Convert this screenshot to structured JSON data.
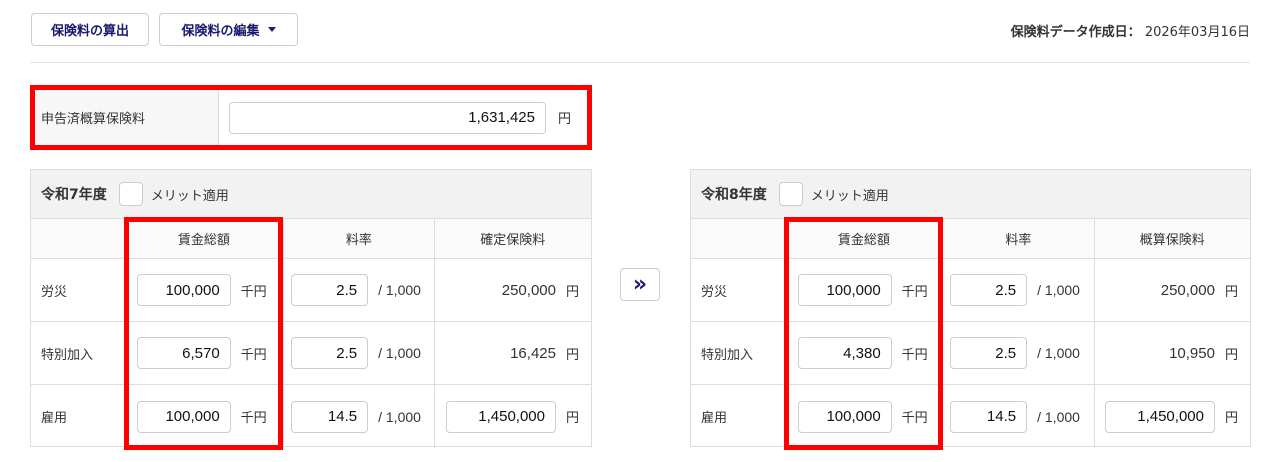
{
  "toolbar": {
    "calc_label": "保険料の算出",
    "edit_label": "保険料の編集"
  },
  "created": {
    "label": "保険料データ作成日：",
    "value": "2026年03月16日"
  },
  "declared": {
    "label": "申告済概算保険料",
    "value": "1,631,425",
    "unit": "円"
  },
  "transfer_icon": "double-chevron-right-icon",
  "tables": [
    {
      "year": "令和7年度",
      "merit_label": "メリット適用",
      "merit_checked": false,
      "columns": [
        "",
        "賃金総額",
        "料率",
        "確定保険料"
      ],
      "rows": [
        {
          "label": "労災",
          "wage": "100,000",
          "wage_unit": "千円",
          "rate": "2.5",
          "rate_unit": "/ 1,000",
          "premium": "250,000",
          "premium_unit": "円",
          "premium_editable": false
        },
        {
          "label": "特別加入",
          "wage": "6,570",
          "wage_unit": "千円",
          "rate": "2.5",
          "rate_unit": "/ 1,000",
          "premium": "16,425",
          "premium_unit": "円",
          "premium_editable": false
        },
        {
          "label": "雇用",
          "wage": "100,000",
          "wage_unit": "千円",
          "rate": "14.5",
          "rate_unit": "/ 1,000",
          "premium": "1,450,000",
          "premium_unit": "円",
          "premium_editable": true
        }
      ]
    },
    {
      "year": "令和8年度",
      "merit_label": "メリット適用",
      "merit_checked": false,
      "columns": [
        "",
        "賃金総額",
        "料率",
        "概算保険料"
      ],
      "rows": [
        {
          "label": "労災",
          "wage": "100,000",
          "wage_unit": "千円",
          "rate": "2.5",
          "rate_unit": "/ 1,000",
          "premium": "250,000",
          "premium_unit": "円",
          "premium_editable": false
        },
        {
          "label": "特別加入",
          "wage": "4,380",
          "wage_unit": "千円",
          "rate": "2.5",
          "rate_unit": "/ 1,000",
          "premium": "10,950",
          "premium_unit": "円",
          "premium_editable": false
        },
        {
          "label": "雇用",
          "wage": "100,000",
          "wage_unit": "千円",
          "rate": "14.5",
          "rate_unit": "/ 1,000",
          "premium": "1,450,000",
          "premium_unit": "円",
          "premium_editable": true
        }
      ]
    }
  ],
  "highlight_color": "#ff0000",
  "accent_color": "#1a1a6e"
}
